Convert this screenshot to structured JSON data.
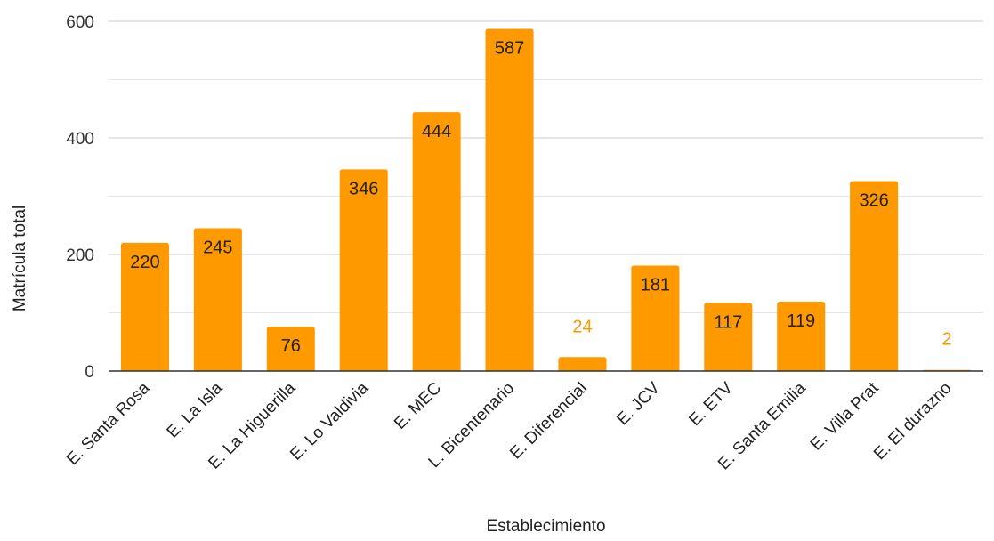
{
  "chart_data": {
    "type": "bar",
    "title": "",
    "xlabel": "Establecimiento",
    "ylabel": "Matrícula total",
    "categories": [
      "E. Santa Rosa",
      "E. La Isla",
      "E. La Higuerilla",
      "E. Lo Valdivia",
      "E. MEC",
      "L. Bicentenario",
      "E. Diferencial",
      "E. JCV",
      "E. ETV",
      "E. Santa Emilia",
      "E. Villa Prat",
      "E. El durazno"
    ],
    "values": [
      220,
      245,
      76,
      346,
      444,
      587,
      24,
      181,
      117,
      119,
      326,
      2
    ],
    "ylim": [
      0,
      600
    ],
    "yticks": [
      0,
      200,
      400,
      600
    ],
    "grid": true,
    "legend": "none"
  },
  "colors": {
    "bar": "#FF9900",
    "label_inside": "#222222",
    "label_outside": "#FF9900",
    "grid_major": "#cccccc",
    "grid_minor": "#e6e6e6",
    "axis": "#333333"
  }
}
